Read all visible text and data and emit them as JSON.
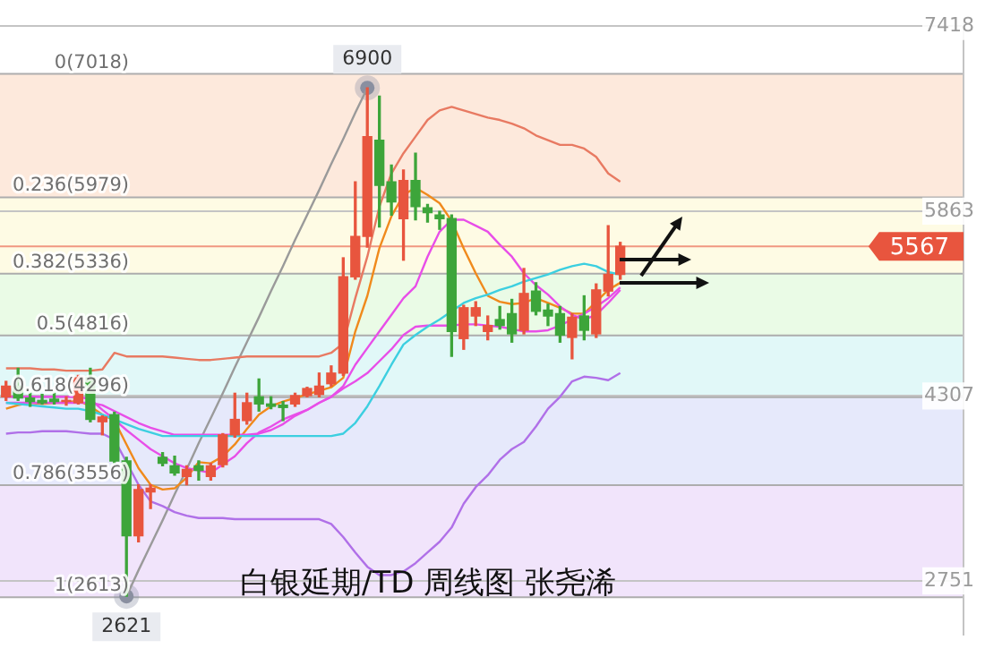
{
  "chart_data": {
    "type": "candlestick",
    "title": "白银延期/TD 周线图 张尧浠",
    "categories": [
      null,
      null,
      null,
      null,
      null,
      null,
      null,
      null,
      null,
      null,
      null,
      null,
      null,
      null,
      null,
      null,
      null,
      null,
      null,
      null,
      null,
      null,
      null,
      null,
      null,
      null,
      null,
      null,
      null,
      null,
      null,
      null,
      null,
      null,
      null,
      null,
      null,
      null,
      null,
      null,
      null,
      null,
      null,
      null,
      null,
      null,
      null,
      null,
      null,
      null,
      null,
      null,
      null,
      null,
      null,
      null,
      null,
      null,
      null,
      null,
      null,
      null,
      null,
      null,
      null,
      null,
      null,
      null,
      null,
      null,
      null,
      null,
      null,
      null,
      null,
      null,
      null,
      null,
      null,
      null
    ],
    "ohlc": [
      [
        4300,
        4430,
        4270,
        4390
      ],
      [
        4390,
        4540,
        4270,
        4290
      ],
      [
        4290,
        4330,
        4220,
        4260
      ],
      [
        4270,
        4320,
        4240,
        4250
      ],
      [
        4280,
        4330,
        4240,
        4260
      ],
      [
        4260,
        4300,
        4230,
        4270
      ],
      [
        4250,
        4480,
        4240,
        4460
      ],
      [
        4460,
        4540,
        4090,
        4110
      ],
      [
        4090,
        4140,
        3980,
        4130
      ],
      [
        4150,
        4170,
        3740,
        3760
      ],
      [
        3760,
        3790,
        2621,
        3130
      ],
      [
        3130,
        3560,
        3080,
        3520
      ],
      [
        3500,
        3560,
        3360,
        3530
      ],
      [
        3790,
        3830,
        3720,
        3740
      ],
      [
        3720,
        3800,
        3640,
        3660
      ],
      [
        3630,
        3720,
        3560,
        3690
      ],
      [
        3720,
        3760,
        3600,
        3680
      ],
      [
        3630,
        3740,
        3600,
        3720
      ],
      [
        3730,
        3990,
        3710,
        3980
      ],
      [
        3980,
        4330,
        3960,
        4110
      ],
      [
        4100,
        4330,
        4070,
        4250
      ],
      [
        4300,
        4450,
        4180,
        4240
      ],
      [
        4240,
        4300,
        4200,
        4220
      ],
      [
        4230,
        4260,
        4100,
        4210
      ],
      [
        4240,
        4330,
        4220,
        4310
      ],
      [
        4310,
        4380,
        4300,
        4370
      ],
      [
        4320,
        4500,
        4300,
        4390
      ],
      [
        4410,
        4560,
        4390,
        4500
      ],
      [
        4500,
        5470,
        4480,
        5310
      ],
      [
        5310,
        6110,
        5290,
        5650
      ],
      [
        5650,
        6900,
        5560,
        6490
      ],
      [
        6460,
        6830,
        5730,
        6080
      ],
      [
        6110,
        6250,
        5830,
        5940
      ],
      [
        5800,
        6210,
        5450,
        6120
      ],
      [
        6120,
        6350,
        5790,
        5900
      ],
      [
        5890,
        5920,
        5770,
        5850
      ],
      [
        5830,
        5860,
        5710,
        5800
      ],
      [
        5800,
        5830,
        4640,
        4850
      ],
      [
        4790,
        5070,
        4700,
        5050
      ],
      [
        4980,
        5100,
        4900,
        5050
      ],
      [
        4850,
        4980,
        4780,
        4900
      ],
      [
        4950,
        5060,
        4870,
        4900
      ],
      [
        5000,
        5120,
        4760,
        4830
      ],
      [
        4860,
        5380,
        4830,
        5170
      ],
      [
        5190,
        5260,
        4990,
        5020
      ],
      [
        5030,
        5080,
        4900,
        4980
      ],
      [
        5000,
        5060,
        4760,
        4820
      ],
      [
        4800,
        5000,
        4620,
        4970
      ],
      [
        4980,
        5150,
        4780,
        4860
      ],
      [
        4830,
        5250,
        4800,
        5200
      ],
      [
        5190,
        5740,
        5150,
        5330
      ],
      [
        5330,
        5600,
        5290,
        5567
      ],
      null,
      null,
      null,
      null,
      null,
      null,
      null,
      null,
      null,
      null,
      null,
      null,
      null,
      null,
      null,
      null,
      null,
      null,
      null,
      null,
      null,
      null,
      null,
      null,
      null,
      null,
      null,
      null
    ],
    "colors": [
      "#e8553e",
      "#3da53a",
      "#3da53a",
      "#3da53a",
      "#3da53a",
      "#e8553e",
      "#e8553e",
      "#3da53a",
      "#e8553e",
      "#3da53a",
      "#3da53a",
      "#e8553e",
      "#e8553e",
      "#3da53a",
      "#3da53a",
      "#e8553e",
      "#3da53a",
      "#e8553e",
      "#e8553e",
      "#e8553e",
      "#e8553e",
      "#3da53a",
      "#3da53a",
      "#3da53a",
      "#e8553e",
      "#e8553e",
      "#e8553e",
      "#e8553e",
      "#e8553e",
      "#e8553e",
      "#e8553e",
      "#3da53a",
      "#3da53a",
      "#e8553e",
      "#3da53a",
      "#3da53a",
      "#3da53a",
      "#3da53a",
      "#e8553e",
      "#e8553e",
      "#e8553e",
      "#3da53a",
      "#3da53a",
      "#e8553e",
      "#3da53a",
      "#3da53a",
      "#3da53a",
      "#e8553e",
      "#3da53a",
      "#e8553e",
      "#e8553e",
      "#e8553e",
      null,
      null,
      null,
      null,
      null,
      null,
      null,
      null,
      null,
      null,
      null,
      null,
      null,
      null,
      null,
      null,
      null,
      null,
      null,
      null,
      null,
      null,
      null,
      null,
      null,
      null,
      null,
      null
    ],
    "series": [
      {
        "type": "line",
        "color": "#e87a62",
        "values": [
          4540,
          4540,
          4540,
          4530,
          4530,
          4520,
          4520,
          4520,
          4530,
          4670,
          4640,
          4640,
          4640,
          4640,
          4630,
          4620,
          4610,
          4610,
          4620,
          4630,
          4640,
          4640,
          4640,
          4640,
          4640,
          4640,
          4640,
          4670,
          4750,
          5130,
          5480,
          5900,
          6180,
          6350,
          6490,
          6630,
          6710,
          6740,
          6710,
          6680,
          6650,
          6630,
          6600,
          6560,
          6500,
          6460,
          6420,
          6420,
          6390,
          6320,
          6180,
          6110,
          null,
          null,
          null,
          null,
          null,
          null,
          null,
          null,
          null,
          null,
          null,
          null,
          null,
          null,
          null,
          null,
          null,
          null,
          null,
          null,
          null,
          null,
          null,
          null,
          null,
          null,
          null,
          null
        ]
      },
      {
        "type": "line",
        "color": "#b070e8",
        "values": [
          3990,
          4000,
          4000,
          4010,
          4010,
          4010,
          4000,
          3990,
          3990,
          3940,
          3750,
          3560,
          3420,
          3380,
          3330,
          3300,
          3280,
          3280,
          3280,
          3270,
          3270,
          3270,
          3270,
          3270,
          3270,
          3270,
          3270,
          3230,
          3120,
          2990,
          2870,
          2800,
          2800,
          2830,
          2900,
          2990,
          3080,
          3200,
          3400,
          3540,
          3640,
          3770,
          3860,
          3920,
          4050,
          4200,
          4300,
          4430,
          4470,
          4460,
          4440,
          4500,
          null,
          null,
          null,
          null,
          null,
          null,
          null,
          null,
          null,
          null,
          null,
          null,
          null,
          null,
          null,
          null,
          null,
          null,
          null,
          null,
          null,
          null,
          null,
          null,
          null,
          null,
          null,
          null
        ]
      },
      {
        "type": "line",
        "color": "#3ccfe0",
        "values": [
          4250,
          4240,
          4230,
          4220,
          4210,
          4200,
          4200,
          4180,
          4150,
          4110,
          4070,
          4030,
          4000,
          3970,
          3970,
          3970,
          3970,
          3970,
          3970,
          3970,
          3970,
          3970,
          3970,
          3970,
          3970,
          3970,
          3970,
          3970,
          3990,
          4080,
          4220,
          4390,
          4570,
          4740,
          4820,
          4890,
          4950,
          5020,
          5090,
          5130,
          5160,
          5200,
          5230,
          5270,
          5300,
          5330,
          5370,
          5400,
          5420,
          5400,
          5350,
          5330,
          null,
          null,
          null,
          null,
          null,
          null,
          null,
          null,
          null,
          null,
          null,
          null,
          null,
          null,
          null,
          null,
          null,
          null,
          null,
          null,
          null,
          null,
          null,
          null,
          null,
          null,
          null,
          null
        ]
      },
      {
        "type": "line",
        "color": "#e84ee8",
        "values": [
          4250,
          4250,
          4250,
          4250,
          4250,
          4250,
          4250,
          4250,
          4230,
          4180,
          4130,
          4080,
          4040,
          4010,
          3980,
          3980,
          3980,
          3980,
          3980,
          3980,
          3980,
          3990,
          4020,
          4070,
          4140,
          4190,
          4250,
          4300,
          4370,
          4430,
          4500,
          4600,
          4700,
          4820,
          4890,
          4900,
          4900,
          4900,
          4910,
          4910,
          4900,
          4890,
          4870,
          4850,
          4850,
          4860,
          4900,
          4950,
          5000,
          5060,
          5130,
          5220,
          null,
          null,
          null,
          null,
          null,
          null,
          null,
          null,
          null,
          null,
          null,
          null,
          null,
          null,
          null,
          null,
          null,
          null,
          null,
          null,
          null,
          null,
          null,
          null,
          null,
          null,
          null,
          null
        ]
      },
      {
        "type": "line",
        "color": "#e84ee8",
        "values": [
          4300,
          4300,
          4300,
          4300,
          4300,
          4300,
          4300,
          4280,
          4190,
          4110,
          4020,
          3940,
          3860,
          3800,
          3740,
          3700,
          3680,
          3660,
          3730,
          3800,
          3910,
          4000,
          4050,
          4110,
          4150,
          4190,
          4250,
          4300,
          4390,
          4570,
          4710,
          4850,
          4990,
          5130,
          5230,
          5480,
          5690,
          5790,
          5790,
          5740,
          5690,
          5580,
          5480,
          5340,
          5240,
          5160,
          5060,
          4990,
          4950,
          4990,
          5090,
          5200,
          null,
          null,
          null,
          null,
          null,
          null,
          null,
          null,
          null,
          null,
          null,
          null,
          null,
          null,
          null,
          null,
          null,
          null,
          null,
          null,
          null,
          null,
          null,
          null,
          null,
          null,
          null,
          null
        ]
      },
      {
        "type": "line",
        "color": "#f08a1c",
        "values": [
          4200,
          4230,
          4250,
          4240,
          4250,
          4250,
          4270,
          4220,
          4150,
          4100,
          3900,
          3700,
          3560,
          3520,
          3530,
          3620,
          3750,
          3740,
          3800,
          3900,
          4030,
          4150,
          4220,
          4260,
          4290,
          4320,
          4350,
          4380,
          4460,
          4850,
          5150,
          5550,
          5820,
          6000,
          6060,
          6000,
          5930,
          5780,
          5550,
          5340,
          5150,
          5100,
          5080,
          5090,
          5130,
          5090,
          5050,
          5000,
          5000,
          5100,
          5200,
          5260,
          null,
          null,
          null,
          null,
          null,
          null,
          null,
          null,
          null,
          null,
          null,
          null,
          null,
          null,
          null,
          null,
          null,
          null,
          null,
          null,
          null,
          null,
          null,
          null,
          null,
          null,
          null,
          null
        ]
      },
      {
        "type": "line",
        "color": "#9a9a9a",
        "values": [
          null,
          null,
          null,
          null,
          null,
          null,
          null,
          null,
          null,
          null,
          2621,
          2840,
          3050,
          3260,
          3480,
          3690,
          3910,
          4120,
          4330,
          4550,
          4760,
          4970,
          5190,
          5400,
          5620,
          5830,
          6040,
          6260,
          6470,
          6690,
          6900,
          null,
          null,
          null,
          null,
          null,
          null,
          null,
          null,
          null,
          null,
          null,
          null,
          null,
          null,
          null,
          null,
          null,
          null,
          null,
          null,
          null,
          null,
          null,
          null,
          null,
          null,
          null,
          null,
          null,
          null,
          null,
          null,
          null,
          null,
          null,
          null,
          null,
          null,
          null,
          null,
          null,
          null,
          null,
          null,
          null,
          null,
          null,
          null,
          null
        ]
      }
    ],
    "ylim": [
      2300,
      7450
    ],
    "yticks": [
      7418,
      5863,
      4307,
      2751
    ],
    "grid": "y",
    "tick_labels": "y",
    "marker": "none",
    "bands": [
      {
        "axis": "y",
        "from": 5979,
        "to": 7018,
        "color": "#fde9dc"
      },
      {
        "axis": "y",
        "from": 5336,
        "to": 5979,
        "color": "#fefbe4"
      },
      {
        "axis": "y",
        "from": 4816,
        "to": 5336,
        "color": "#eafbe6"
      },
      {
        "axis": "y",
        "from": 4296,
        "to": 4816,
        "color": "#e1f8f8"
      },
      {
        "axis": "y",
        "from": 3556,
        "to": 4296,
        "color": "#e6e9fb"
      },
      {
        "axis": "y",
        "from": 2613,
        "to": 3556,
        "color": "#f1e4fb"
      }
    ],
    "ref_lines": [
      {
        "axis": "y",
        "value": 7018,
        "label": "0(7018)"
      },
      {
        "axis": "y",
        "value": 5979,
        "label": "0.236(5979)"
      },
      {
        "axis": "y",
        "value": 5336,
        "label": "0.382(5336)"
      },
      {
        "axis": "y",
        "value": 4816,
        "label": "0.5(4816)"
      },
      {
        "axis": "y",
        "value": 4296,
        "label": "0.618(4296)"
      },
      {
        "axis": "y",
        "value": 3556,
        "label": "0.786(3556)"
      },
      {
        "axis": "y",
        "value": 2613,
        "label": "1(2613)"
      },
      {
        "axis": "y",
        "value": 5567,
        "label": "5567",
        "color": "#e8553e"
      }
    ],
    "annotations": [
      {
        "text": "6900",
        "y": 6900
      },
      {
        "text": "2621",
        "y": 2621
      }
    ]
  }
}
